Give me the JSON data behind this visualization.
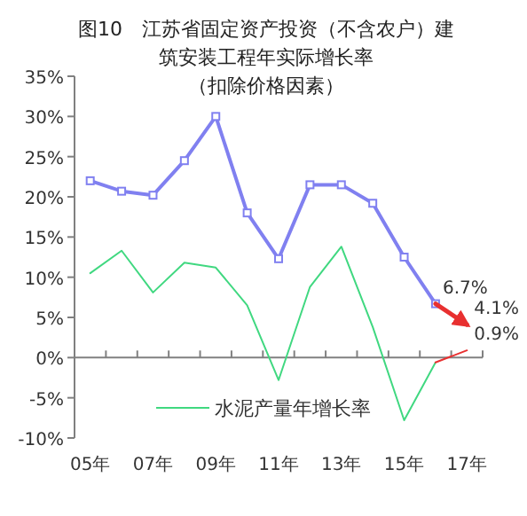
{
  "chart_data": {
    "type": "line",
    "title": "图10　江苏省固定资产投资（不含农户）建筑安装工程年实际增长率",
    "subtitle": "（扣除价格因素）",
    "categories": [
      "05年",
      null,
      "07年",
      null,
      "09年",
      null,
      "11年",
      null,
      "13年",
      null,
      "15年",
      null,
      "17年"
    ],
    "series": [
      {
        "color": "#8080f0",
        "marker": "square",
        "values": [
          22,
          20.7,
          20.2,
          24.5,
          30,
          18,
          12.3,
          21.5,
          21.5,
          19.2,
          12.5,
          6.7,
          null
        ]
      },
      {
        "color": "#e83030",
        "marker": "none",
        "values": [
          null,
          null,
          null,
          null,
          null,
          null,
          null,
          null,
          null,
          null,
          null,
          6.7,
          4.1
        ],
        "value_labels": [
          null,
          null,
          null,
          null,
          null,
          null,
          null,
          null,
          null,
          null,
          null,
          "6.7%",
          "4.1%"
        ]
      },
      {
        "name": "水泥产量年增长率",
        "color": "#40d880",
        "marker": "none",
        "values": [
          10.5,
          13.3,
          8.1,
          11.8,
          11.2,
          6.5,
          -2.8,
          8.8,
          13.8,
          3.8,
          -7.8,
          -0.6,
          null
        ]
      },
      {
        "color": "#e83030",
        "marker": "none",
        "values": [
          null,
          null,
          null,
          null,
          null,
          null,
          null,
          null,
          null,
          null,
          null,
          -0.6,
          0.9
        ],
        "value_labels": [
          null,
          null,
          null,
          null,
          null,
          null,
          null,
          null,
          null,
          null,
          null,
          null,
          "0.9%"
        ]
      }
    ],
    "ylim": [
      -10,
      35
    ],
    "yticks": [
      {
        "value": -10,
        "label": "-10%"
      },
      {
        "value": -5,
        "label": "-5%"
      },
      {
        "value": 0,
        "label": "0%"
      },
      {
        "value": 5,
        "label": "5%"
      },
      {
        "value": 10,
        "label": "10%"
      },
      {
        "value": 15,
        "label": "15%"
      },
      {
        "value": 20,
        "label": "20%"
      },
      {
        "value": 25,
        "label": "25%"
      },
      {
        "value": 30,
        "label": "30%"
      },
      {
        "value": 35,
        "label": "35%"
      }
    ],
    "legend": "bottom"
  }
}
